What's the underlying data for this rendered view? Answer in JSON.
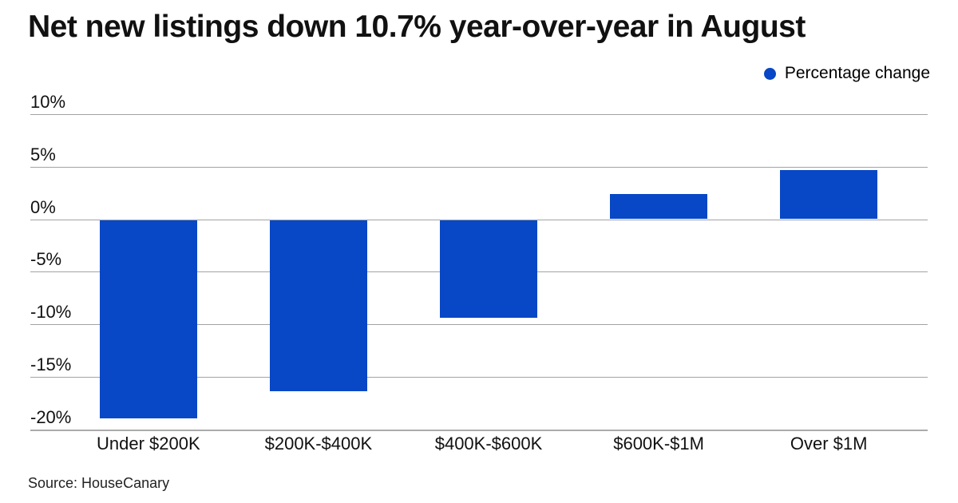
{
  "header": {
    "title": "Net new listings down 10.7% year-over-year in August"
  },
  "legend": {
    "label": "Percentage change"
  },
  "footer": {
    "source": "Source: HouseCanary"
  },
  "colors": {
    "bar_blue": "#0847C5",
    "gridline_gray": "#a3a3a3",
    "axis_gray": "#ababab",
    "text_dark": "#111111"
  },
  "chart_data": {
    "type": "bar",
    "title": "Net new listings down 10.7% year-over-year in August",
    "categories": [
      "Under $200K",
      "$200K-$400K",
      "$400K-$600K",
      "$600K-$1M",
      "Over $1M"
    ],
    "series": [
      {
        "name": "Percentage change",
        "values": [
          -18.9,
          -16.3,
          -9.3,
          2.4,
          4.7
        ]
      }
    ],
    "xlabel": "",
    "ylabel": "",
    "ylim": [
      -20,
      10
    ],
    "y_tick_values": [
      10,
      5,
      0,
      -5,
      -10,
      -15,
      -20
    ],
    "y_tick_labels": [
      "10%",
      "5%",
      "0%",
      "-5%",
      "-10%",
      "-15%",
      "-20%"
    ],
    "grid": "horizontal",
    "legend_position": "top-right",
    "source": "Source: HouseCanary"
  }
}
